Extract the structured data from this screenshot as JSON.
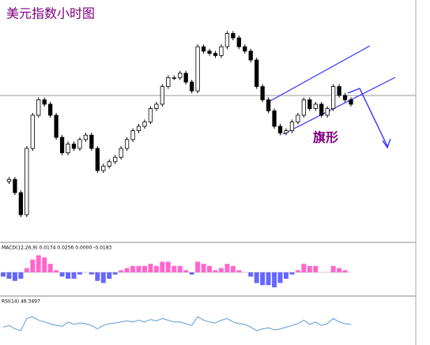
{
  "title": "美元指数小时图",
  "annotation": "旗形",
  "chart_data": [
    {
      "type": "candlestick",
      "ylim": [
        0,
        100
      ],
      "color_up": "#ffffff",
      "color_down": "#000000",
      "values": [
        25,
        26,
        20,
        10,
        40,
        55,
        62,
        60,
        55,
        45,
        38,
        42,
        40,
        44,
        46,
        40,
        30,
        32,
        34,
        36,
        40,
        44,
        48,
        50,
        52,
        58,
        60,
        68,
        72,
        72,
        74,
        70,
        66,
        86,
        84,
        83,
        82,
        86,
        92,
        90,
        86,
        84,
        80,
        68,
        62,
        57,
        50,
        47,
        48,
        52,
        55,
        62,
        58,
        60,
        55,
        58,
        68,
        64,
        62,
        60
      ]
    },
    {
      "type": "bar",
      "label": "MACD(12,26,9) 0.0174 0.0256 0.0000 -0.0183",
      "ylim": [
        -1,
        1
      ],
      "color_up": "#ff66cc",
      "color_down": "#6666ff",
      "values": [
        -0.2,
        -0.3,
        -0.4,
        -0.3,
        0.2,
        0.6,
        0.8,
        0.7,
        0.4,
        0.1,
        -0.2,
        -0.3,
        -0.3,
        -0.1,
        0.0,
        -0.1,
        -0.4,
        -0.5,
        -0.3,
        -0.1,
        0.1,
        0.2,
        0.3,
        0.3,
        0.3,
        0.4,
        0.3,
        0.5,
        0.5,
        0.3,
        0.3,
        0.1,
        -0.1,
        0.5,
        0.4,
        0.3,
        0.1,
        0.2,
        0.4,
        0.3,
        0.1,
        0.0,
        -0.2,
        -0.5,
        -0.6,
        -0.6,
        -0.7,
        -0.5,
        -0.3,
        -0.1,
        0.1,
        0.4,
        0.3,
        0.3,
        0.0,
        0.0,
        0.3,
        0.2,
        0.1,
        0.0
      ]
    },
    {
      "type": "line",
      "label": "RSI(14) 46.3497",
      "ylim": [
        0,
        100
      ],
      "color": "#5b9bd5",
      "values": [
        40,
        45,
        35,
        30,
        65,
        70,
        60,
        55,
        50,
        45,
        42,
        55,
        48,
        52,
        50,
        45,
        35,
        45,
        50,
        52,
        55,
        58,
        55,
        60,
        55,
        62,
        58,
        65,
        60,
        55,
        55,
        50,
        45,
        70,
        60,
        55,
        52,
        60,
        65,
        55,
        50,
        48,
        40,
        30,
        35,
        38,
        32,
        35,
        40,
        45,
        50,
        60,
        48,
        55,
        45,
        50,
        65,
        55,
        50,
        48
      ]
    }
  ]
}
